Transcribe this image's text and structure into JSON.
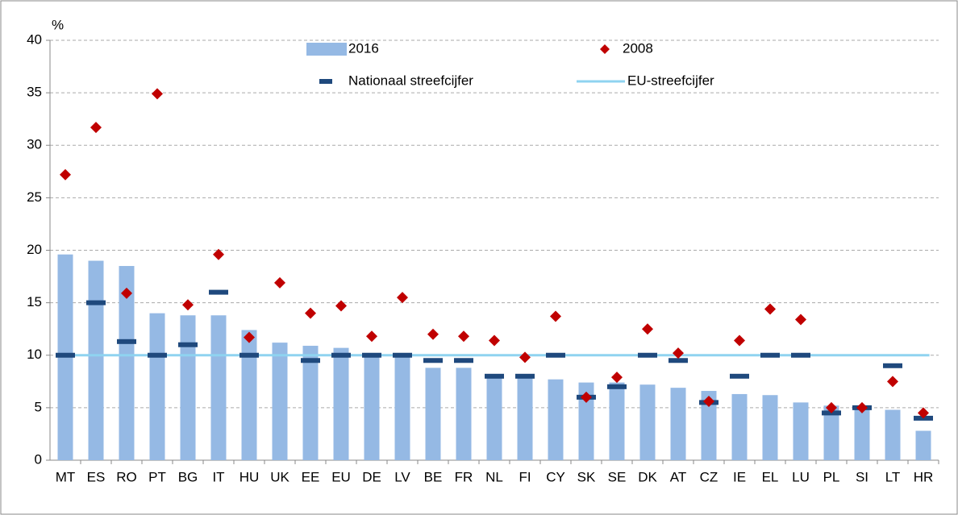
{
  "chart_data": {
    "type": "combo",
    "y_label": "%",
    "categories": [
      "MT",
      "ES",
      "RO",
      "PT",
      "BG",
      "IT",
      "HU",
      "UK",
      "EE",
      "EU",
      "DE",
      "LV",
      "BE",
      "FR",
      "NL",
      "FI",
      "CY",
      "SK",
      "SE",
      "DK",
      "AT",
      "CZ",
      "IE",
      "EL",
      "LU",
      "PL",
      "SI",
      "LT",
      "HR"
    ],
    "series": [
      {
        "name": "2016",
        "kind": "bar",
        "color": "#95b9e4",
        "values": [
          19.6,
          19.0,
          18.5,
          14.0,
          13.8,
          13.8,
          12.4,
          11.2,
          10.9,
          10.7,
          10.2,
          10.0,
          8.8,
          8.8,
          8.0,
          7.9,
          7.7,
          7.4,
          7.4,
          7.2,
          6.9,
          6.6,
          6.3,
          6.2,
          5.5,
          5.2,
          4.9,
          4.8,
          2.8
        ]
      },
      {
        "name": "2008",
        "kind": "diamond",
        "color": "#c00000",
        "values": [
          27.2,
          31.7,
          15.9,
          34.9,
          14.8,
          19.6,
          11.7,
          16.9,
          14.0,
          14.7,
          11.8,
          15.5,
          12.0,
          11.8,
          11.4,
          9.8,
          13.7,
          6.0,
          7.9,
          12.5,
          10.2,
          5.6,
          11.4,
          14.4,
          13.4,
          5.0,
          5.0,
          7.5,
          4.5
        ]
      },
      {
        "name": "Nationaal streefcijfer",
        "kind": "dash",
        "color": "#1f497d",
        "values": [
          10,
          15,
          11.3,
          10,
          11,
          16,
          10,
          null,
          9.5,
          10,
          10,
          10,
          9.5,
          9.5,
          8,
          8,
          10,
          6,
          7,
          10,
          9.5,
          5.5,
          8,
          10,
          10,
          4.5,
          5,
          9,
          4
        ]
      },
      {
        "name": "EU-streefcijfer",
        "kind": "hline",
        "color": "#8fd3f0",
        "value": 10
      }
    ],
    "ylim": [
      0,
      40
    ],
    "yticks": [
      0,
      5,
      10,
      15,
      20,
      25,
      30,
      35,
      40
    ],
    "grid": true
  }
}
